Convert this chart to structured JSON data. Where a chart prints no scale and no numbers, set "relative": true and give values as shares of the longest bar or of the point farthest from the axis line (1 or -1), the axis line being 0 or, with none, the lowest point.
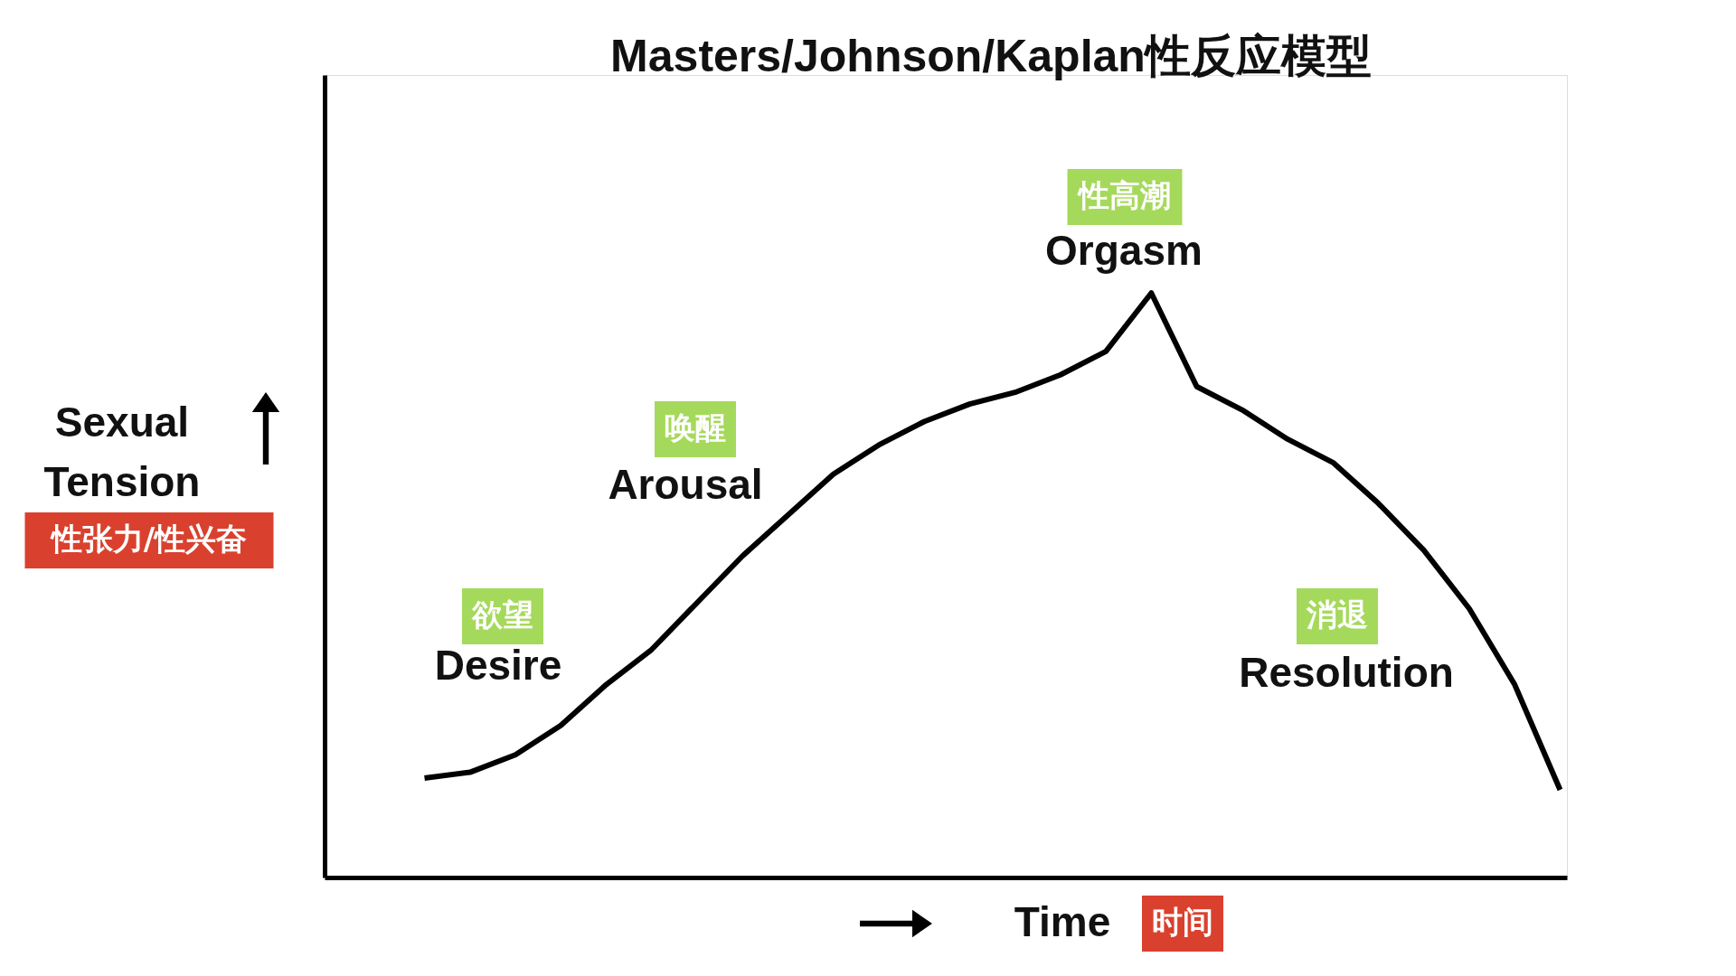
{
  "chart_data": {
    "type": "line",
    "title": "Masters/Johnson/Kaplan性反应模型",
    "xlabel": "Time",
    "ylabel": "Sexual Tension",
    "relative": true,
    "tick_labels": false,
    "categories": [
      null,
      null,
      null,
      null,
      null,
      null,
      null,
      null,
      null,
      null,
      null,
      null,
      null,
      null,
      null,
      null,
      null,
      null,
      null,
      null,
      null,
      null,
      null,
      null,
      null,
      null
    ],
    "series": [
      {
        "color": "#000000",
        "values": [
          0.17,
          0.18,
          0.21,
          0.26,
          0.33,
          0.39,
          0.47,
          0.55,
          0.62,
          0.69,
          0.74,
          0.78,
          0.81,
          0.83,
          0.86,
          0.9,
          1,
          0.84,
          0.8,
          0.75,
          0.71,
          0.64,
          0.56,
          0.46,
          0.33,
          0.15
        ]
      }
    ],
    "annotations": [
      "欲望",
      "Desire",
      "唤醒",
      "Arousal",
      "性高潮",
      "Orgasm",
      "消退",
      "Resolution",
      "性张力/性兴奋",
      "时间"
    ]
  }
}
